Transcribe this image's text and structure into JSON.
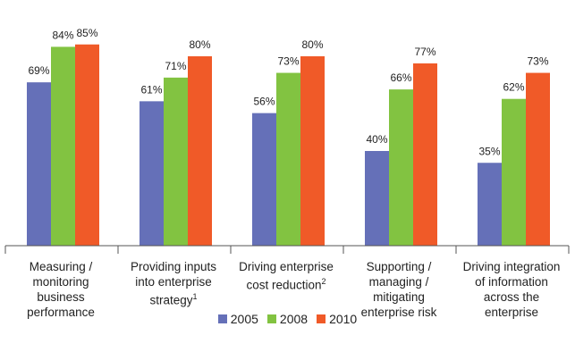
{
  "chart_data": {
    "type": "bar",
    "categories": [
      "Measuring /\nmonitoring\nbusiness\nperformance",
      "Providing inputs\ninto enterprise\nstrategy1",
      "Driving enterprise\ncost reduction2",
      "Supporting /\nmanaging /\nmitigating\nenterprise risk",
      "Driving integration\nof information\nacross the\nenterprise"
    ],
    "series": [
      {
        "name": "2005",
        "color": "#6570b8",
        "values": [
          69,
          61,
          56,
          40,
          35
        ],
        "labels": [
          "69%",
          "61%",
          "56%",
          "40%",
          "35%"
        ]
      },
      {
        "name": "2008",
        "color": "#82c341",
        "values": [
          84,
          71,
          73,
          66,
          62
        ],
        "labels": [
          "84%",
          "71%",
          "73%",
          "66%",
          "62%"
        ]
      },
      {
        "name": "2010",
        "color": "#f05a28",
        "values": [
          85,
          80,
          80,
          77,
          73
        ],
        "labels": [
          "85%",
          "80%",
          "80%",
          "77%",
          "73%"
        ]
      }
    ],
    "ylim": [
      0,
      100
    ],
    "grid": false,
    "legend_position": "bottom"
  }
}
